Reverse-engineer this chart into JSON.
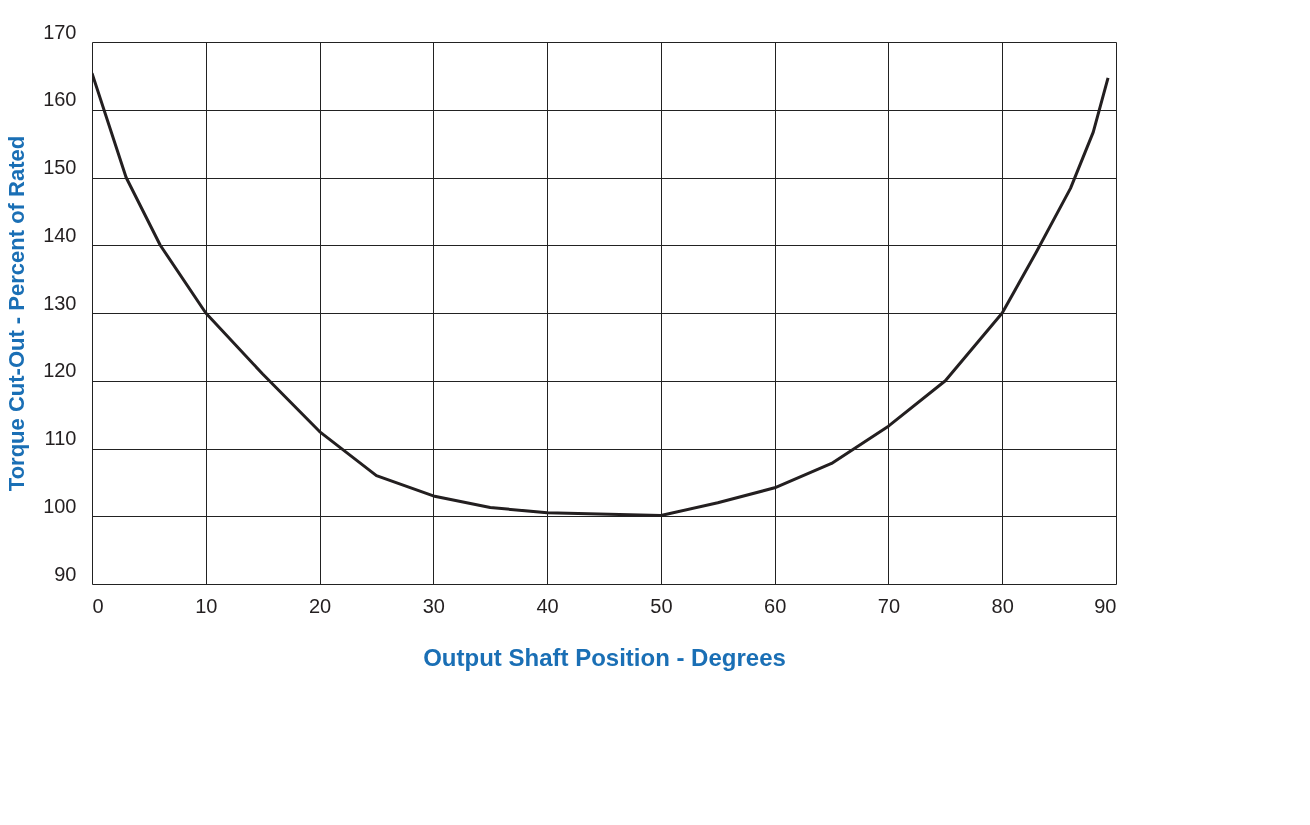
{
  "chart_data": {
    "type": "line",
    "xlabel": "Output Shaft Position - Degrees",
    "ylabel": "Torque Cut-Out - Percent of Rated",
    "x": [
      0,
      3,
      6,
      10,
      15,
      20,
      25,
      30,
      35,
      40,
      50,
      55,
      60,
      65,
      70,
      75,
      80,
      83,
      86,
      88,
      89.3
    ],
    "series": [
      {
        "color": "#231f20",
        "values": [
          165.4,
          150,
          140,
          130,
          121,
          112.5,
          106,
          103,
          101.3,
          100.5,
          100.1,
          102,
          104.2,
          107.8,
          113.3,
          120,
          130,
          139,
          148.4,
          156.7,
          164.7
        ]
      }
    ],
    "xlim": [
      0,
      90
    ],
    "ylim": [
      90,
      170
    ],
    "xticks": [
      0,
      10,
      20,
      30,
      40,
      50,
      60,
      70,
      80,
      90
    ],
    "yticks": [
      90,
      100,
      110,
      120,
      130,
      140,
      150,
      160,
      170
    ],
    "grid": true,
    "marker": "none",
    "line_style": "solid"
  }
}
